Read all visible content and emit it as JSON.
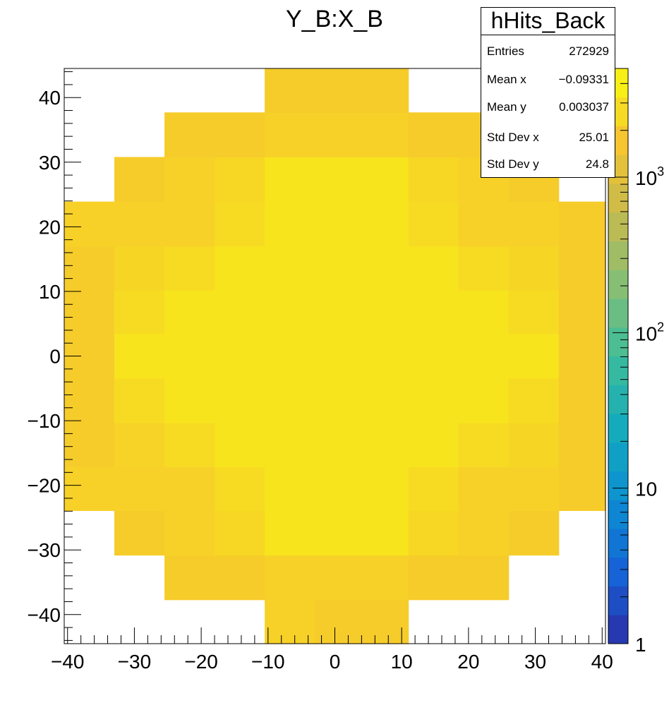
{
  "chart_data": {
    "type": "heatmap",
    "title": "Y_B:X_B",
    "xlabel": "",
    "ylabel": "",
    "xlim": [
      -40.5,
      40.5
    ],
    "ylim": [
      -44.5,
      44.5
    ],
    "x_edges": [
      -40.5,
      -33,
      -25.5,
      -18,
      -10.5,
      -3,
      4,
      11,
      18.5,
      26,
      33.5,
      40.5
    ],
    "y_edges": [
      -44.5,
      -37.7,
      -30.8,
      -23.9,
      -17.1,
      -10.3,
      -3.4,
      3.5,
      10.2,
      17.0,
      23.9,
      30.8,
      37.7,
      44.5
    ],
    "x_ticks": [
      -40,
      -30,
      -20,
      -10,
      0,
      10,
      20,
      30,
      40
    ],
    "x_tick_labels": [
      "−40",
      "−30",
      "−20",
      "−10",
      "0",
      "10",
      "20",
      "30",
      "40"
    ],
    "y_ticks": [
      -40,
      -30,
      -20,
      -10,
      0,
      10,
      20,
      30,
      40
    ],
    "y_tick_labels": [
      "−40",
      "−30",
      "−20",
      "−10",
      "0",
      "10",
      "20",
      "30",
      "40"
    ],
    "z_scale": "log",
    "z_range": [
      1,
      5000
    ],
    "z_ticks": [
      1,
      10,
      100,
      1000
    ],
    "z_tick_labels": [
      {
        "base": "1",
        "exp": ""
      },
      {
        "base": "10",
        "exp": ""
      },
      {
        "base": "10",
        "exp": "2"
      },
      {
        "base": "10",
        "exp": "3"
      }
    ],
    "colormap": [
      "#2a2fa7",
      "#1563d6",
      "#0c8fd2",
      "#14acbc",
      "#3fbc9a",
      "#86bf74",
      "#c8ba4e",
      "#f6c52f",
      "#f9fa10"
    ],
    "cells_note_rows_bottom_to_top": "",
    "cells": [
      [
        0,
        0,
        0,
        0,
        2200,
        2000,
        2000,
        0,
        0,
        0,
        0
      ],
      [
        0,
        0,
        2000,
        2000,
        2200,
        2200,
        2200,
        2000,
        2000,
        0,
        0
      ],
      [
        0,
        2000,
        2200,
        2500,
        3200,
        3200,
        3200,
        2500,
        2200,
        2000,
        0
      ],
      [
        2200,
        2200,
        2200,
        2700,
        3200,
        3200,
        3200,
        2700,
        2200,
        2200,
        2000
      ],
      [
        2000,
        2300,
        2700,
        3200,
        3200,
        3200,
        3200,
        3200,
        2700,
        2400,
        2000
      ],
      [
        2000,
        2700,
        3200,
        3200,
        3200,
        3200,
        3200,
        3200,
        3200,
        2700,
        2000
      ],
      [
        2000,
        3200,
        3200,
        3200,
        3200,
        3200,
        3200,
        3200,
        3200,
        3200,
        2000
      ],
      [
        2000,
        2700,
        3200,
        3200,
        3200,
        3200,
        3200,
        3200,
        3200,
        2700,
        2000
      ],
      [
        2000,
        2400,
        2700,
        3200,
        3200,
        3200,
        3200,
        3200,
        2700,
        2400,
        2000
      ],
      [
        2200,
        2200,
        2200,
        2700,
        3200,
        3200,
        3200,
        2700,
        2200,
        2200,
        2000
      ],
      [
        0,
        2000,
        2200,
        2500,
        3200,
        3200,
        3200,
        2500,
        2200,
        2000,
        0
      ],
      [
        0,
        0,
        2000,
        2000,
        2200,
        2200,
        2200,
        2000,
        2000,
        0,
        0
      ],
      [
        0,
        0,
        0,
        0,
        2000,
        2000,
        2000,
        0,
        0,
        0,
        0
      ]
    ]
  },
  "stats": {
    "title": "hHits_Back",
    "rows": [
      {
        "label": "Entries",
        "value": "272929"
      },
      {
        "label": "Mean x",
        "value": "−0.09331"
      },
      {
        "label": "Mean y",
        "value": "0.003037"
      },
      {
        "label": "Std Dev x",
        "value": "25.01"
      },
      {
        "label": "Std Dev y",
        "value": "24.8"
      }
    ]
  }
}
